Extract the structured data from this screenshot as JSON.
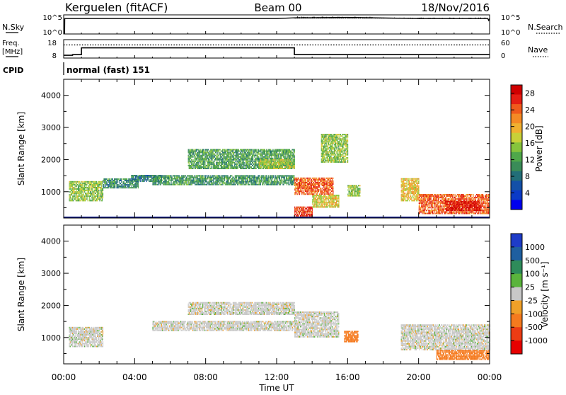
{
  "header": {
    "station": "Kerguelen (fitACF)",
    "beam": "Beam 00",
    "date": "18/Nov/2016"
  },
  "panels": {
    "nsky": {
      "label": "N.Sky",
      "left_ticks": [
        "10^5",
        "10^0"
      ],
      "right_ticks": [
        "10^5",
        "10^0"
      ],
      "right_label": "N.Search"
    },
    "freq": {
      "label_line1": "Freq.",
      "label_line2": "[MHz]",
      "left_ticks": [
        "18",
        "8"
      ],
      "right_ticks": [
        "60",
        "0"
      ],
      "right_label": "Nave"
    },
    "cpid": {
      "label": "CPID",
      "text": "normal (fast) 151"
    }
  },
  "chart_data": [
    {
      "type": "line",
      "title": "N.Sky / N.Search",
      "x_range_hours": [
        0,
        24
      ],
      "series": [
        {
          "name": "N.Sky",
          "points": [
            [
              0,
              0
            ],
            [
              0.05,
              0
            ],
            [
              0.06,
              4.0
            ],
            [
              6,
              4.0
            ],
            [
              12,
              4.0
            ],
            [
              13,
              4.2
            ],
            [
              16,
              4.3
            ],
            [
              20,
              4.0
            ],
            [
              23.9,
              4.0
            ],
            [
              23.95,
              3.5
            ],
            [
              24,
              4.0
            ]
          ]
        }
      ]
    },
    {
      "type": "line",
      "title": "Freq. / Nave",
      "x_range_hours": [
        0,
        24
      ],
      "series": [
        {
          "name": "Freq.",
          "unit": "MHz",
          "points": [
            [
              0,
              9.2
            ],
            [
              0.5,
              9.2
            ],
            [
              0.5,
              9.6
            ],
            [
              1.0,
              9.6
            ],
            [
              1.0,
              13.6
            ],
            [
              13.0,
              13.6
            ],
            [
              13.0,
              9.6
            ],
            [
              24,
              9.6
            ]
          ]
        },
        {
          "name": "Nave",
          "points": [
            [
              0,
              44
            ],
            [
              24,
              44
            ]
          ]
        }
      ]
    },
    {
      "type": "heatmap",
      "variable": "Power",
      "xlabel": "",
      "ylabel": "Slant Range [km]",
      "x_ticks": [
        "00:00",
        "04:00",
        "08:00",
        "12:00",
        "16:00",
        "20:00",
        "00:00"
      ],
      "ylim": [
        180,
        4500
      ],
      "y_ticks": [
        1000,
        2000,
        3000,
        4000
      ],
      "colorbar": {
        "label": "Power [dB]",
        "ticks": [
          4,
          8,
          12,
          16,
          20,
          24,
          28
        ],
        "range": [
          0,
          30
        ],
        "colors": [
          "#0000ee",
          "#0a3ac8",
          "#1450a8",
          "#226e78",
          "#3a8c58",
          "#4fa84a",
          "#86c43c",
          "#c8d038",
          "#f0b030",
          "#f58a25",
          "#f05a1c",
          "#e51e14",
          "#d00000"
        ]
      },
      "regions": [
        {
          "t": [
            0.3,
            2.2
          ],
          "r": [
            700,
            1300
          ],
          "v": 15
        },
        {
          "t": [
            2.2,
            4.2
          ],
          "r": [
            1100,
            1400
          ],
          "v": 10
        },
        {
          "t": [
            3.8,
            5.5
          ],
          "r": [
            1300,
            1500
          ],
          "v": 9
        },
        {
          "t": [
            5.0,
            13.0
          ],
          "r": [
            1200,
            1500
          ],
          "v": 11
        },
        {
          "t": [
            7.0,
            13.0
          ],
          "r": [
            1700,
            2300
          ],
          "v": 12
        },
        {
          "t": [
            11.0,
            13.0
          ],
          "r": [
            1700,
            2000
          ],
          "v": 16
        },
        {
          "t": [
            13.0,
            15.2
          ],
          "r": [
            900,
            1400
          ],
          "v": 24
        },
        {
          "t": [
            13.0,
            14.0
          ],
          "r": [
            180,
            500
          ],
          "v": 26
        },
        {
          "t": [
            14.0,
            15.5
          ],
          "r": [
            500,
            900
          ],
          "v": 18
        },
        {
          "t": [
            14.5,
            16.0
          ],
          "r": [
            1900,
            2800
          ],
          "v": 15
        },
        {
          "t": [
            16.0,
            16.7
          ],
          "r": [
            850,
            1200
          ],
          "v": 15
        },
        {
          "t": [
            19.0,
            20.0
          ],
          "r": [
            700,
            1400
          ],
          "v": 19
        },
        {
          "t": [
            20.0,
            24.0
          ],
          "r": [
            300,
            900
          ],
          "v": 24
        },
        {
          "t": [
            21.5,
            23.5
          ],
          "r": [
            400,
            700
          ],
          "v": 28
        }
      ]
    },
    {
      "type": "heatmap",
      "variable": "Velocity",
      "xlabel": "Time UT",
      "ylabel": "Slant Range [km]",
      "x_ticks": [
        "00:00",
        "04:00",
        "08:00",
        "12:00",
        "16:00",
        "20:00",
        "00:00"
      ],
      "ylim": [
        180,
        4500
      ],
      "y_ticks": [
        1000,
        2000,
        3000,
        4000
      ],
      "colorbar": {
        "label": "Velocity [m s⁻¹]",
        "ticks": [
          "1000",
          "500",
          "100",
          "25",
          "-25",
          "-100",
          "-500",
          "-1000"
        ],
        "colors": [
          "#1e3cc8",
          "#1f5fa0",
          "#2e8c5a",
          "#5ab43c",
          "#c8c8c8",
          "#f0a028",
          "#f57a1e",
          "#ec3c14",
          "#e60000"
        ]
      },
      "regions": [
        {
          "t": [
            0.3,
            2.2
          ],
          "r": [
            700,
            1300
          ],
          "v": 0
        },
        {
          "t": [
            5.0,
            13.0
          ],
          "r": [
            1200,
            1500
          ],
          "v": 0
        },
        {
          "t": [
            7.0,
            13.0
          ],
          "r": [
            1700,
            2100
          ],
          "v": 0
        },
        {
          "t": [
            13.0,
            15.5
          ],
          "r": [
            1000,
            1800
          ],
          "v": 0
        },
        {
          "t": [
            15.8,
            16.6
          ],
          "r": [
            850,
            1200
          ],
          "v": -400
        },
        {
          "t": [
            19.0,
            24.0
          ],
          "r": [
            600,
            1400
          ],
          "v": 0
        },
        {
          "t": [
            21.0,
            24.0
          ],
          "r": [
            300,
            600
          ],
          "v": -200
        }
      ]
    }
  ]
}
